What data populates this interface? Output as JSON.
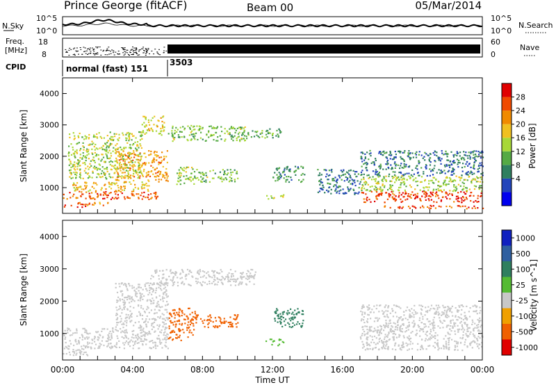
{
  "header": {
    "station": "Prince George (fitACF)",
    "beam": "Beam 00",
    "date": "05/Mar/2014"
  },
  "noise_panel": {
    "left_label": "N.Sky",
    "right_label": "N.Search",
    "left_ticks": [
      "10^5",
      "10^0"
    ],
    "right_ticks": [
      "10^5",
      "10^0"
    ],
    "log_scale": true
  },
  "freq_panel": {
    "left_label_1": "Freq.",
    "left_label_2": "[MHz]",
    "right_label": "Nave",
    "left_ticks": [
      "18",
      "8"
    ],
    "right_ticks": [
      "60",
      "0"
    ]
  },
  "cpid": {
    "label": "CPID",
    "segments": [
      {
        "name": "normal (fast) 151",
        "start_hour": 0,
        "end_hour": 6
      },
      {
        "name": "3503",
        "start_hour": 6,
        "end_hour": 24
      }
    ]
  },
  "chart_data": [
    {
      "type": "heatmap",
      "name": "power",
      "ylabel": "Slant Range [km]",
      "xlim_hours": [
        0,
        24
      ],
      "ylim": [
        180,
        4500
      ],
      "yticks": [
        1000,
        2000,
        3000,
        4000
      ],
      "colorbar": {
        "label": "Power [dB]",
        "ticks": [
          "28",
          "24",
          "20",
          "16",
          "12",
          "8",
          "4"
        ],
        "colors": [
          "#0000ee",
          "#2244bb",
          "#2f7f5f",
          "#55aa44",
          "#a8d838",
          "#f0c020",
          "#f08a00",
          "#f04a00",
          "#e00000"
        ],
        "range": [
          0,
          32
        ]
      },
      "regions": [
        {
          "t0": 0.0,
          "t1": 1.3,
          "r0": 400,
          "r1": 550,
          "value": 28
        },
        {
          "t0": 1.3,
          "t1": 3.2,
          "r0": 450,
          "r1": 550,
          "value": 24
        },
        {
          "t0": 0.0,
          "t1": 5.5,
          "r0": 650,
          "r1": 900,
          "value": 26
        },
        {
          "t0": 0.5,
          "t1": 5.0,
          "r0": 900,
          "r1": 1200,
          "value": 20
        },
        {
          "t0": 3.0,
          "t1": 6.0,
          "r0": 1200,
          "r1": 2200,
          "value": 22
        },
        {
          "t0": 0.3,
          "t1": 4.5,
          "r0": 1300,
          "r1": 2800,
          "value": 16
        },
        {
          "t0": 4.5,
          "t1": 5.8,
          "r0": 2700,
          "r1": 3300,
          "value": 18
        },
        {
          "t0": 6.0,
          "t1": 10.5,
          "r0": 2500,
          "r1": 3000,
          "value": 14
        },
        {
          "t0": 10.5,
          "t1": 12.5,
          "r0": 2600,
          "r1": 2900,
          "value": 12
        },
        {
          "t0": 6.5,
          "t1": 7.5,
          "r0": 1100,
          "r1": 1700,
          "value": 16
        },
        {
          "t0": 7.5,
          "t1": 10.0,
          "r0": 1200,
          "r1": 1600,
          "value": 14
        },
        {
          "t0": 11.6,
          "t1": 12.6,
          "r0": 650,
          "r1": 800,
          "value": 18
        },
        {
          "t0": 12.0,
          "t1": 13.8,
          "r0": 1200,
          "r1": 1700,
          "value": 10
        },
        {
          "t0": 14.5,
          "t1": 17.0,
          "r0": 800,
          "r1": 1600,
          "value": 8
        },
        {
          "t0": 17.0,
          "t1": 24.0,
          "r0": 1400,
          "r1": 2200,
          "value": 8
        },
        {
          "t0": 17.0,
          "t1": 24.0,
          "r0": 900,
          "r1": 1400,
          "value": 16
        },
        {
          "t0": 17.0,
          "t1": 24.0,
          "r0": 550,
          "r1": 900,
          "value": 28
        },
        {
          "t0": 18.0,
          "t1": 24.0,
          "r0": 350,
          "r1": 450,
          "value": 26
        }
      ]
    },
    {
      "type": "heatmap",
      "name": "velocity",
      "ylabel": "Slant Range [km]",
      "xlabel": "Time UT",
      "xlim_hours": [
        0,
        24
      ],
      "xticks": [
        "00:00",
        "04:00",
        "08:00",
        "12:00",
        "16:00",
        "20:00",
        "00:00"
      ],
      "ylim": [
        180,
        4500
      ],
      "yticks": [
        1000,
        2000,
        3000,
        4000
      ],
      "colorbar": {
        "label": "Velocity [m s^-1]",
        "ticks": [
          "1000",
          "500",
          "100",
          "25",
          "-25",
          "-100",
          "-500",
          "-1000"
        ],
        "colors": [
          "#1020c0",
          "#2f5fa0",
          "#2f7f5f",
          "#55bb33",
          "#c8c8c8",
          "#f0a000",
          "#f06000",
          "#e00000"
        ]
      },
      "regions": [
        {
          "t0": 0.0,
          "t1": 1.5,
          "r0": 300,
          "r1": 550,
          "value": 0
        },
        {
          "t0": 0.0,
          "t1": 6.0,
          "r0": 550,
          "r1": 1200,
          "value": 0
        },
        {
          "t0": 3.0,
          "t1": 6.0,
          "r0": 1200,
          "r1": 2600,
          "value": 0
        },
        {
          "t0": 5.0,
          "t1": 11.0,
          "r0": 2500,
          "r1": 3000,
          "value": 0
        },
        {
          "t0": 6.0,
          "t1": 7.6,
          "r0": 800,
          "r1": 1800,
          "value": -150
        },
        {
          "t0": 7.6,
          "t1": 10.0,
          "r0": 1200,
          "r1": 1600,
          "value": -300
        },
        {
          "t0": 11.6,
          "t1": 12.6,
          "r0": 650,
          "r1": 850,
          "value": 60
        },
        {
          "t0": 12.0,
          "t1": 13.8,
          "r0": 1200,
          "r1": 1800,
          "value": 250
        },
        {
          "t0": 17.0,
          "t1": 24.0,
          "r0": 500,
          "r1": 1900,
          "value": 0
        }
      ]
    }
  ]
}
